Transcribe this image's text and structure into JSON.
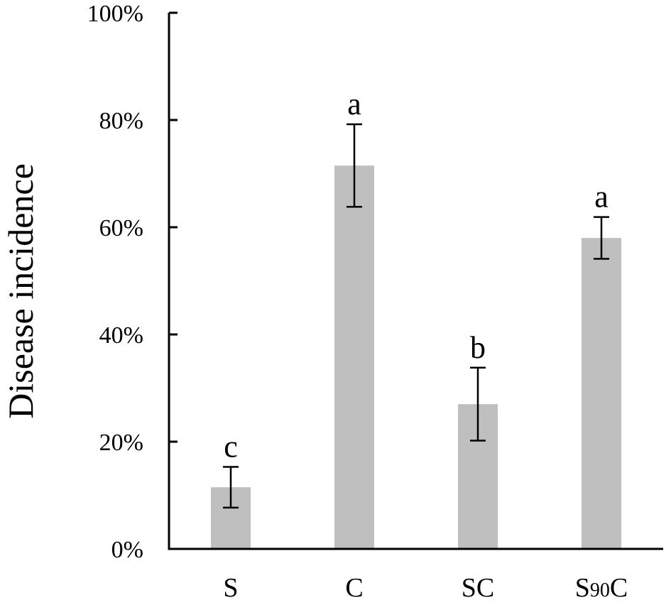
{
  "chart_data": {
    "type": "bar",
    "title": "",
    "xlabel": "",
    "ylabel": "Disease incidence",
    "ylim": [
      0,
      100
    ],
    "y_unit": "%",
    "y_ticks": [
      "0%",
      "20%",
      "40%",
      "60%",
      "80%",
      "100%"
    ],
    "y_tick_values": [
      0,
      20,
      40,
      60,
      80,
      100
    ],
    "categories": [
      "S",
      "C",
      "SC",
      "S90C"
    ],
    "category_display": [
      {
        "main": "S",
        "sub": "",
        "tail": ""
      },
      {
        "main": "C",
        "sub": "",
        "tail": ""
      },
      {
        "main": "SC",
        "sub": "",
        "tail": ""
      },
      {
        "main": "S",
        "sub": "90",
        "tail": "C"
      }
    ],
    "values": [
      11.5,
      71.5,
      27,
      58
    ],
    "error": [
      3.8,
      7.7,
      6.8,
      3.9
    ],
    "significance": [
      "c",
      "a",
      "b",
      "a"
    ],
    "bar_color": "#bfbfbf",
    "grid": false,
    "legend": "none"
  }
}
